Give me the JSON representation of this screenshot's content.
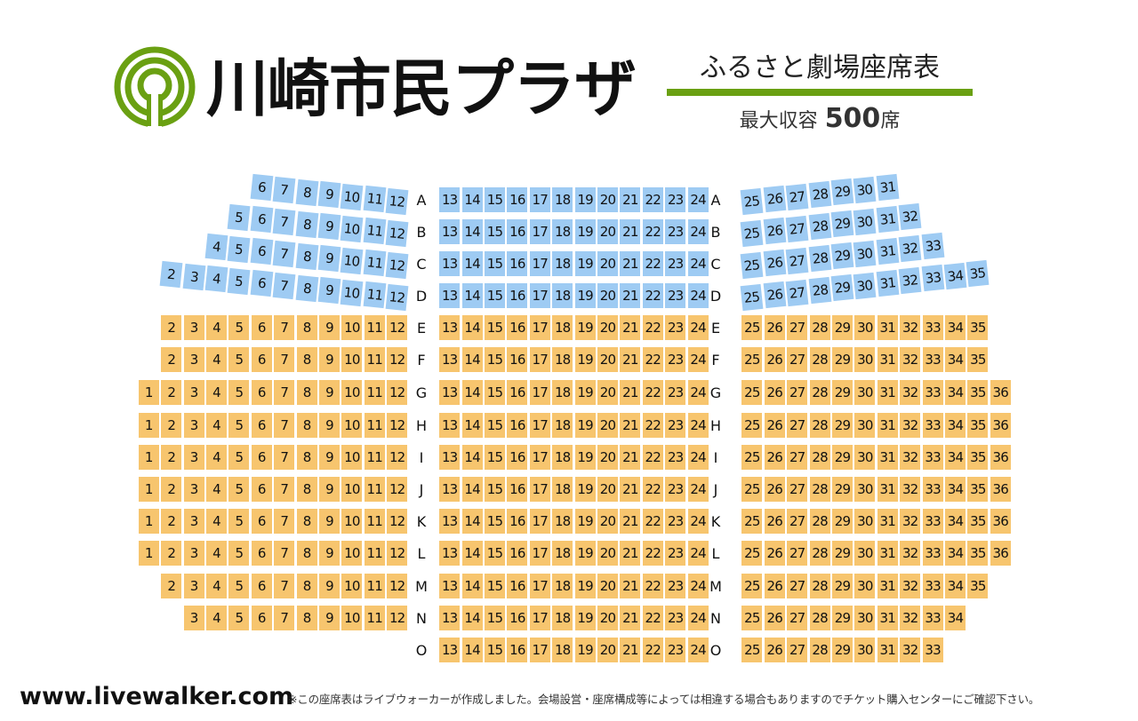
{
  "header": {
    "venue_name": "川崎市民プラザ",
    "subtitle": "ふるさと劇場座席表",
    "capacity_label": "最大収容",
    "capacity_value": "500",
    "capacity_unit": "席",
    "logo_icon": "ring-logo-icon",
    "accent_color": "#6aa012"
  },
  "seat_colors": {
    "upper": "#9ecbf3",
    "lower": "#f7c56e"
  },
  "seat_rows": [
    {
      "label": "A",
      "tier": "upper",
      "seats": [
        6,
        7,
        8,
        9,
        10,
        11,
        12,
        13,
        14,
        15,
        16,
        17,
        18,
        19,
        20,
        21,
        22,
        23,
        24,
        25,
        26,
        27,
        28,
        29,
        30,
        31
      ]
    },
    {
      "label": "B",
      "tier": "upper",
      "seats": [
        5,
        6,
        7,
        8,
        9,
        10,
        11,
        12,
        13,
        14,
        15,
        16,
        17,
        18,
        19,
        20,
        21,
        22,
        23,
        24,
        25,
        26,
        27,
        28,
        29,
        30,
        31,
        32
      ]
    },
    {
      "label": "C",
      "tier": "upper",
      "seats": [
        4,
        5,
        6,
        7,
        8,
        9,
        10,
        11,
        12,
        13,
        14,
        15,
        16,
        17,
        18,
        19,
        20,
        21,
        22,
        23,
        24,
        25,
        26,
        27,
        28,
        29,
        30,
        31,
        32,
        33
      ]
    },
    {
      "label": "D",
      "tier": "upper",
      "seats": [
        2,
        3,
        4,
        5,
        6,
        7,
        8,
        9,
        10,
        11,
        12,
        13,
        14,
        15,
        16,
        17,
        18,
        19,
        20,
        21,
        22,
        23,
        24,
        25,
        26,
        27,
        28,
        29,
        30,
        31,
        32,
        33,
        34,
        35
      ]
    },
    {
      "label": "E",
      "tier": "lower",
      "seats": [
        2,
        3,
        4,
        5,
        6,
        7,
        8,
        9,
        10,
        11,
        12,
        13,
        14,
        15,
        16,
        17,
        18,
        19,
        20,
        21,
        22,
        23,
        24,
        25,
        26,
        27,
        28,
        29,
        30,
        31,
        32,
        33,
        34,
        35
      ]
    },
    {
      "label": "F",
      "tier": "lower",
      "seats": [
        2,
        3,
        4,
        5,
        6,
        7,
        8,
        9,
        10,
        11,
        12,
        13,
        14,
        15,
        16,
        17,
        18,
        19,
        20,
        21,
        22,
        23,
        24,
        25,
        26,
        27,
        28,
        29,
        30,
        31,
        32,
        33,
        34,
        35
      ]
    },
    {
      "label": "G",
      "tier": "lower",
      "seats": [
        1,
        2,
        3,
        4,
        5,
        6,
        7,
        8,
        9,
        10,
        11,
        12,
        13,
        14,
        15,
        16,
        17,
        18,
        19,
        20,
        21,
        22,
        23,
        24,
        25,
        26,
        27,
        28,
        29,
        30,
        31,
        32,
        33,
        34,
        35,
        36
      ]
    },
    {
      "label": "H",
      "tier": "lower",
      "seats": [
        1,
        2,
        3,
        4,
        5,
        6,
        7,
        8,
        9,
        10,
        11,
        12,
        13,
        14,
        15,
        16,
        17,
        18,
        19,
        20,
        21,
        22,
        23,
        24,
        25,
        26,
        27,
        28,
        29,
        30,
        31,
        32,
        33,
        34,
        35,
        36
      ]
    },
    {
      "label": "I",
      "tier": "lower",
      "seats": [
        1,
        2,
        3,
        4,
        5,
        6,
        7,
        8,
        9,
        10,
        11,
        12,
        13,
        14,
        15,
        16,
        17,
        18,
        19,
        20,
        21,
        22,
        23,
        24,
        25,
        26,
        27,
        28,
        29,
        30,
        31,
        32,
        33,
        34,
        35,
        36
      ]
    },
    {
      "label": "J",
      "tier": "lower",
      "seats": [
        1,
        2,
        3,
        4,
        5,
        6,
        7,
        8,
        9,
        10,
        11,
        12,
        13,
        14,
        15,
        16,
        17,
        18,
        19,
        20,
        21,
        22,
        23,
        24,
        25,
        26,
        27,
        28,
        29,
        30,
        31,
        32,
        33,
        34,
        35,
        36
      ]
    },
    {
      "label": "K",
      "tier": "lower",
      "seats": [
        1,
        2,
        3,
        4,
        5,
        6,
        7,
        8,
        9,
        10,
        11,
        12,
        13,
        14,
        15,
        16,
        17,
        18,
        19,
        20,
        21,
        22,
        23,
        24,
        25,
        26,
        27,
        28,
        29,
        30,
        31,
        32,
        33,
        34,
        35,
        36
      ]
    },
    {
      "label": "L",
      "tier": "lower",
      "seats": [
        1,
        2,
        3,
        4,
        5,
        6,
        7,
        8,
        9,
        10,
        11,
        12,
        13,
        14,
        15,
        16,
        17,
        18,
        19,
        20,
        21,
        22,
        23,
        24,
        25,
        26,
        27,
        28,
        29,
        30,
        31,
        32,
        33,
        34,
        35,
        36
      ]
    },
    {
      "label": "M",
      "tier": "lower",
      "seats": [
        2,
        3,
        4,
        5,
        6,
        7,
        8,
        9,
        10,
        11,
        12,
        13,
        14,
        15,
        16,
        17,
        18,
        19,
        20,
        21,
        22,
        23,
        24,
        25,
        26,
        27,
        28,
        29,
        30,
        31,
        32,
        33,
        34,
        35
      ]
    },
    {
      "label": "N",
      "tier": "lower",
      "seats": [
        3,
        4,
        5,
        6,
        7,
        8,
        9,
        10,
        11,
        12,
        13,
        14,
        15,
        16,
        17,
        18,
        19,
        20,
        21,
        22,
        23,
        24,
        25,
        26,
        27,
        28,
        29,
        30,
        31,
        32,
        33,
        34
      ]
    },
    {
      "label": "O",
      "tier": "lower",
      "seats": [
        13,
        14,
        15,
        16,
        17,
        18,
        19,
        20,
        21,
        22,
        23,
        24,
        25,
        26,
        27,
        28,
        29,
        30,
        31,
        32,
        33
      ]
    }
  ],
  "footer": {
    "site": "www.livewalker.com",
    "note": "※この座席表はライブウォーカーが作成しました。会場設営・座席構成等によっては相違する場合もありますのでチケット購入センターにご確認下さい。"
  }
}
